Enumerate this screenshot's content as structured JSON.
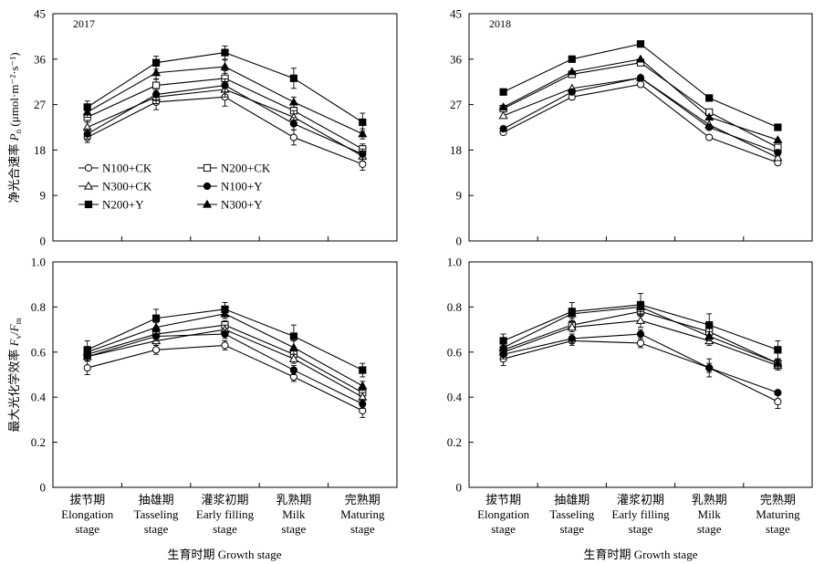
{
  "x_categories": [
    {
      "cn": "拔节期",
      "en1": "Elongation",
      "en2": "stage"
    },
    {
      "cn": "抽雄期",
      "en1": "Tasseling",
      "en2": "stage"
    },
    {
      "cn": "灌浆初期",
      "en1": "Early filling",
      "en2": "stage"
    },
    {
      "cn": "乳熟期",
      "en1": "Milk",
      "en2": "stage"
    },
    {
      "cn": "完熟期",
      "en1": "Maturing",
      "en2": "stage"
    }
  ],
  "xlabel": "生育时期 Growth stage",
  "pn_ylabel": "净光合速率 Pn (μmol·m⁻²·s⁻¹)",
  "fvfm_ylabel": "最大光化学效率 Fv/Fm",
  "legend": [
    "N100+CK",
    "N200+CK",
    "N300+CK",
    "N100+Y",
    "N200+Y",
    "N300+Y"
  ],
  "chart_data": [
    {
      "id": "pn-2017",
      "type": "line",
      "year_label": "2017",
      "ylim": [
        0,
        45
      ],
      "yticks": [
        0,
        9,
        18,
        27,
        36,
        45
      ],
      "series": [
        {
          "name": "N100+CK",
          "marker": "circle-open",
          "values": [
            20.5,
            27.5,
            28.5,
            20.5,
            15.2
          ],
          "errors": [
            1.0,
            1.5,
            1.8,
            1.5,
            1.2
          ]
        },
        {
          "name": "N200+CK",
          "marker": "square-open",
          "values": [
            24.5,
            30.8,
            32.2,
            25.8,
            18.2
          ],
          "errors": [
            1.0,
            1.3,
            1.5,
            1.5,
            1.0
          ]
        },
        {
          "name": "N300+CK",
          "marker": "triangle-open",
          "values": [
            22.5,
            28.5,
            30.0,
            24.5,
            16.8
          ],
          "errors": [
            1.0,
            1.3,
            1.5,
            1.3,
            1.0
          ]
        },
        {
          "name": "N100+Y",
          "marker": "circle-filled",
          "values": [
            21.2,
            29.0,
            30.8,
            23.2,
            17.2
          ],
          "errors": [
            1.0,
            1.2,
            1.3,
            1.2,
            1.0
          ]
        },
        {
          "name": "N200+Y",
          "marker": "square-filled",
          "values": [
            26.5,
            35.3,
            37.3,
            32.2,
            23.5
          ],
          "errors": [
            1.2,
            1.3,
            1.3,
            2.0,
            1.8
          ]
        },
        {
          "name": "N300+Y",
          "marker": "triangle-filled",
          "values": [
            25.5,
            33.3,
            34.5,
            27.5,
            21.2
          ],
          "errors": [
            1.0,
            1.3,
            1.3,
            1.0,
            1.0
          ]
        }
      ]
    },
    {
      "id": "pn-2018",
      "type": "line",
      "year_label": "2018",
      "ylim": [
        0,
        45
      ],
      "yticks": [
        0,
        9,
        18,
        27,
        36,
        45
      ],
      "series": [
        {
          "name": "N100+CK",
          "marker": "circle-open",
          "values": [
            21.5,
            28.5,
            31.0,
            20.5,
            15.5
          ],
          "errors": [
            0,
            0,
            0,
            0,
            0
          ]
        },
        {
          "name": "N200+CK",
          "marker": "square-open",
          "values": [
            26.2,
            33.0,
            35.3,
            25.5,
            18.5
          ],
          "errors": [
            0,
            0,
            0,
            0,
            0
          ]
        },
        {
          "name": "N300+CK",
          "marker": "triangle-open",
          "values": [
            24.8,
            30.2,
            32.3,
            23.0,
            16.5
          ],
          "errors": [
            0,
            0,
            0,
            0,
            0
          ]
        },
        {
          "name": "N100+Y",
          "marker": "circle-filled",
          "values": [
            22.2,
            29.5,
            32.3,
            22.5,
            17.5
          ],
          "errors": [
            0,
            0,
            0,
            0,
            0
          ]
        },
        {
          "name": "N200+Y",
          "marker": "square-filled",
          "values": [
            29.5,
            36.0,
            39.0,
            28.3,
            22.5
          ],
          "errors": [
            0,
            0,
            0,
            0,
            0
          ]
        },
        {
          "name": "N300+Y",
          "marker": "triangle-filled",
          "values": [
            26.5,
            33.5,
            36.0,
            24.5,
            20.0
          ],
          "errors": [
            0,
            0,
            0,
            0,
            0
          ]
        }
      ]
    },
    {
      "id": "fvfm-2017",
      "type": "line",
      "year_label": "",
      "ylim": [
        0,
        1.0
      ],
      "yticks": [
        0,
        0.2,
        0.4,
        0.6,
        0.8,
        1.0
      ],
      "series": [
        {
          "name": "N100+CK",
          "marker": "circle-open",
          "values": [
            0.53,
            0.61,
            0.63,
            0.49,
            0.34
          ],
          "errors": [
            0.03,
            0.02,
            0.02,
            0.02,
            0.03
          ]
        },
        {
          "name": "N200+CK",
          "marker": "square-open",
          "values": [
            0.59,
            0.68,
            0.72,
            0.59,
            0.42
          ],
          "errors": [
            0.02,
            0.02,
            0.02,
            0.03,
            0.02
          ]
        },
        {
          "name": "N300+CK",
          "marker": "triangle-open",
          "values": [
            0.58,
            0.65,
            0.7,
            0.57,
            0.4
          ],
          "errors": [
            0.02,
            0.02,
            0.02,
            0.02,
            0.02
          ]
        },
        {
          "name": "N100+Y",
          "marker": "circle-filled",
          "values": [
            0.58,
            0.67,
            0.68,
            0.52,
            0.37
          ],
          "errors": [
            0.02,
            0.02,
            0.02,
            0.02,
            0.02
          ]
        },
        {
          "name": "N200+Y",
          "marker": "square-filled",
          "values": [
            0.61,
            0.75,
            0.79,
            0.67,
            0.52
          ],
          "errors": [
            0.04,
            0.04,
            0.03,
            0.05,
            0.03
          ]
        },
        {
          "name": "N300+Y",
          "marker": "triangle-filled",
          "values": [
            0.6,
            0.71,
            0.77,
            0.62,
            0.45
          ],
          "errors": [
            0.02,
            0.02,
            0.02,
            0.03,
            0.02
          ]
        }
      ]
    },
    {
      "id": "fvfm-2018",
      "type": "line",
      "year_label": "",
      "ylim": [
        0,
        1.0
      ],
      "yticks": [
        0,
        0.2,
        0.4,
        0.6,
        0.8,
        1.0
      ],
      "series": [
        {
          "name": "N100+CK",
          "marker": "circle-open",
          "values": [
            0.57,
            0.65,
            0.64,
            0.53,
            0.38
          ],
          "errors": [
            0.03,
            0.02,
            0.02,
            0.04,
            0.03
          ]
        },
        {
          "name": "N200+CK",
          "marker": "square-open",
          "values": [
            0.61,
            0.72,
            0.78,
            0.69,
            0.55
          ],
          "errors": [
            0.02,
            0.02,
            0.02,
            0.02,
            0.02
          ]
        },
        {
          "name": "N300+CK",
          "marker": "triangle-open",
          "values": [
            0.6,
            0.71,
            0.74,
            0.65,
            0.54
          ],
          "errors": [
            0.02,
            0.02,
            0.03,
            0.02,
            0.02
          ]
        },
        {
          "name": "N100+Y",
          "marker": "circle-filled",
          "values": [
            0.59,
            0.66,
            0.68,
            0.53,
            0.42
          ],
          "errors": [
            0.02,
            0.02,
            0.02,
            0.02,
            0.01
          ]
        },
        {
          "name": "N200+Y",
          "marker": "square-filled",
          "values": [
            0.65,
            0.78,
            0.81,
            0.72,
            0.61
          ],
          "errors": [
            0.03,
            0.04,
            0.05,
            0.05,
            0.04
          ]
        },
        {
          "name": "N300+Y",
          "marker": "triangle-filled",
          "values": [
            0.62,
            0.77,
            0.8,
            0.67,
            0.55
          ],
          "errors": [
            0.02,
            0.02,
            0.02,
            0.02,
            0.02
          ]
        }
      ]
    }
  ]
}
